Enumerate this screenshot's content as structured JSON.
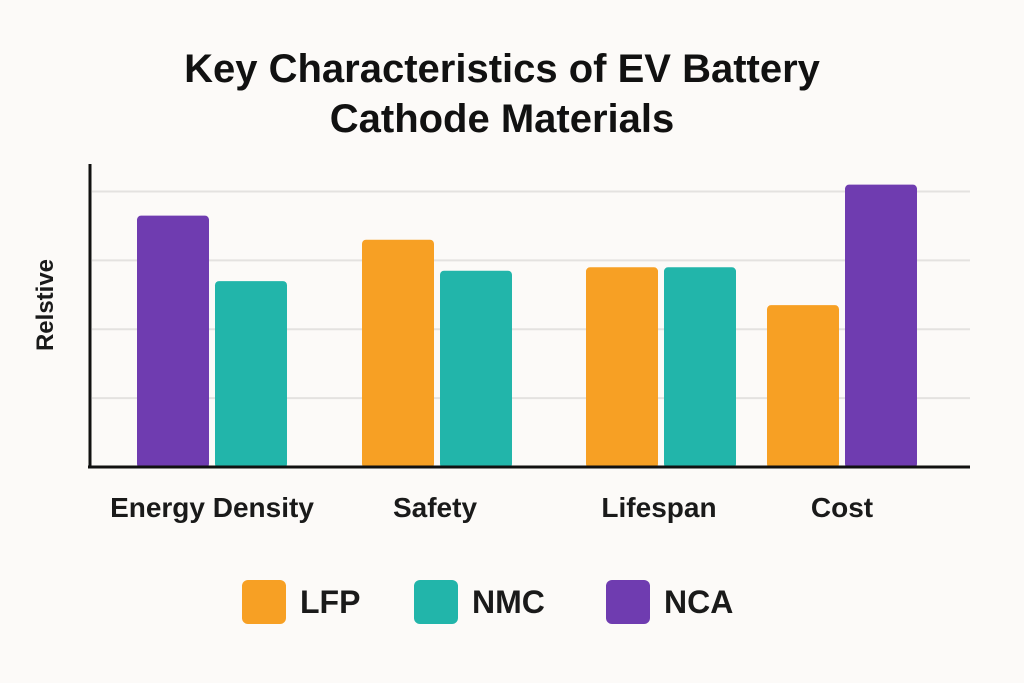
{
  "chart_data": {
    "type": "bar",
    "title_lines": [
      "Key Characteristics of EV Battery",
      "Cathode Materials"
    ],
    "xlabel": "",
    "ylabel": "Relstive",
    "ylim": [
      0,
      4.4
    ],
    "grid": true,
    "legend_position": "bottom",
    "categories": [
      "Energy Density",
      "Safety",
      "Lifespan",
      "Cost"
    ],
    "series": [
      {
        "name": "LFP",
        "color": "#f7a024",
        "values": [
          null,
          3.3,
          2.9,
          2.35
        ]
      },
      {
        "name": "NMC",
        "color": "#22b5aa",
        "values": [
          2.7,
          2.85,
          2.9,
          null
        ]
      },
      {
        "name": "NCA",
        "color": "#6f3cb0",
        "values": [
          3.65,
          null,
          null,
          4.1
        ]
      }
    ],
    "category_bars": [
      [
        "NCA",
        "NMC"
      ],
      [
        "LFP",
        "NMC"
      ],
      [
        "LFP",
        "NMC"
      ],
      [
        "LFP",
        "NCA"
      ]
    ]
  }
}
